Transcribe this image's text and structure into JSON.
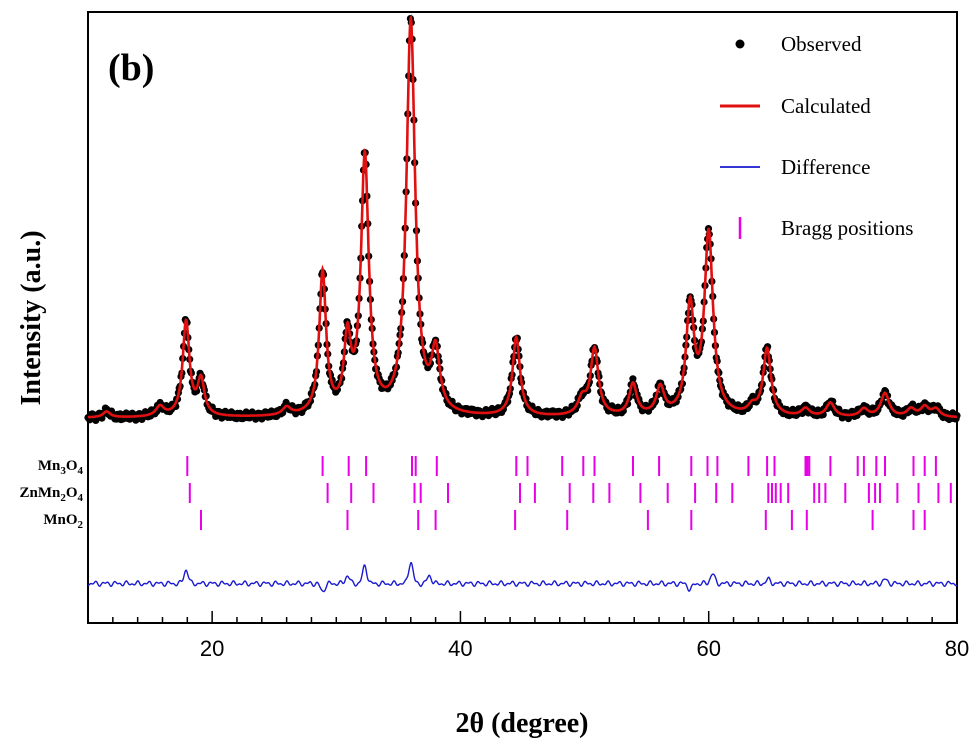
{
  "chart_data": {
    "type": "line",
    "panel_label": "(b)",
    "xlabel": "2θ (degree)",
    "ylabel": "Intensity (a.u.)",
    "xlim": [
      10,
      80
    ],
    "ylim": [
      -0.52,
      1.03
    ],
    "x_ticks": [
      20,
      40,
      60,
      80
    ],
    "grid": false,
    "legend_position": "top-right",
    "legend": [
      {
        "label": "Observed",
        "marker": "dot",
        "color": "#000000"
      },
      {
        "label": "Calculated",
        "marker": "line",
        "color": "#e01010"
      },
      {
        "label": "Difference",
        "marker": "line",
        "color": "#1a1ad0"
      },
      {
        "label": "Bragg positions",
        "marker": "tick",
        "color": "#e800e8"
      }
    ],
    "colors": {
      "observed": "#000000",
      "calculated": "#e01010",
      "difference": "#1a1ad0",
      "bragg": "#e800e8"
    },
    "baseline": 0.0,
    "difference_offset": -0.42,
    "peaks": [
      {
        "x": 11.5,
        "h": 0.015,
        "w": 0.35
      },
      {
        "x": 15.8,
        "h": 0.025,
        "w": 0.4
      },
      {
        "x": 17.9,
        "h": 0.24,
        "w": 0.33
      },
      {
        "x": 19.1,
        "h": 0.09,
        "w": 0.33
      },
      {
        "x": 26.0,
        "h": 0.02,
        "w": 0.4
      },
      {
        "x": 28.9,
        "h": 0.36,
        "w": 0.33
      },
      {
        "x": 30.9,
        "h": 0.18,
        "w": 0.33
      },
      {
        "x": 32.3,
        "h": 0.65,
        "w": 0.38
      },
      {
        "x": 36.0,
        "h": 1.0,
        "w": 0.42
      },
      {
        "x": 38.0,
        "h": 0.15,
        "w": 0.4
      },
      {
        "x": 44.5,
        "h": 0.2,
        "w": 0.36
      },
      {
        "x": 49.8,
        "h": 0.04,
        "w": 0.4
      },
      {
        "x": 50.8,
        "h": 0.17,
        "w": 0.38
      },
      {
        "x": 53.9,
        "h": 0.08,
        "w": 0.36
      },
      {
        "x": 56.1,
        "h": 0.07,
        "w": 0.38
      },
      {
        "x": 58.5,
        "h": 0.27,
        "w": 0.38
      },
      {
        "x": 60.0,
        "h": 0.46,
        "w": 0.42
      },
      {
        "x": 63.5,
        "h": 0.02,
        "w": 0.4
      },
      {
        "x": 64.7,
        "h": 0.17,
        "w": 0.38
      },
      {
        "x": 67.8,
        "h": 0.02,
        "w": 0.4
      },
      {
        "x": 69.8,
        "h": 0.035,
        "w": 0.4
      },
      {
        "x": 72.5,
        "h": 0.02,
        "w": 0.4
      },
      {
        "x": 74.2,
        "h": 0.06,
        "w": 0.4
      },
      {
        "x": 76.3,
        "h": 0.02,
        "w": 0.4
      },
      {
        "x": 77.4,
        "h": 0.025,
        "w": 0.4
      },
      {
        "x": 78.3,
        "h": 0.02,
        "w": 0.4
      }
    ],
    "difference_bumps": [
      {
        "x": 17.9,
        "a": 0.035
      },
      {
        "x": 28.9,
        "a": -0.02
      },
      {
        "x": 30.9,
        "a": 0.02
      },
      {
        "x": 32.3,
        "a": 0.045
      },
      {
        "x": 36.0,
        "a": 0.055
      },
      {
        "x": 37.5,
        "a": 0.02
      },
      {
        "x": 58.5,
        "a": -0.015
      },
      {
        "x": 60.3,
        "a": 0.025
      },
      {
        "x": 64.8,
        "a": 0.01
      },
      {
        "x": 74.2,
        "a": 0.01
      }
    ],
    "bragg_phases": [
      {
        "name_base": "Mn",
        "name_sub1": "3",
        "name_mid": "O",
        "name_sub2": "4",
        "positions": [
          18.0,
          28.9,
          31.0,
          32.4,
          36.1,
          36.4,
          38.1,
          44.5,
          45.4,
          48.2,
          49.9,
          50.8,
          53.9,
          56.0,
          58.6,
          59.9,
          60.7,
          63.2,
          64.7,
          65.3,
          67.8,
          67.95,
          68.1,
          69.8,
          72.0,
          72.5,
          73.5,
          74.2,
          76.5,
          77.4,
          78.3
        ]
      },
      {
        "name_base": "ZnMn",
        "name_sub1": "2",
        "name_mid": "O",
        "name_sub2": "4",
        "positions": [
          18.2,
          29.3,
          31.2,
          33.0,
          36.3,
          36.8,
          39.0,
          44.8,
          46.0,
          48.8,
          50.7,
          52.0,
          54.5,
          56.7,
          58.9,
          60.6,
          61.9,
          64.8,
          65.1,
          65.4,
          65.8,
          66.4,
          68.5,
          68.9,
          69.4,
          71.0,
          72.9,
          73.4,
          73.8,
          75.2,
          76.9,
          78.5,
          79.5
        ]
      },
      {
        "name_base": "MnO",
        "name_sub1": "",
        "name_mid": "",
        "name_sub2": "2",
        "positions": [
          19.1,
          30.9,
          36.6,
          38.0,
          44.4,
          48.6,
          55.1,
          58.6,
          64.6,
          66.7,
          67.9,
          73.2,
          76.5,
          77.4
        ]
      }
    ]
  }
}
